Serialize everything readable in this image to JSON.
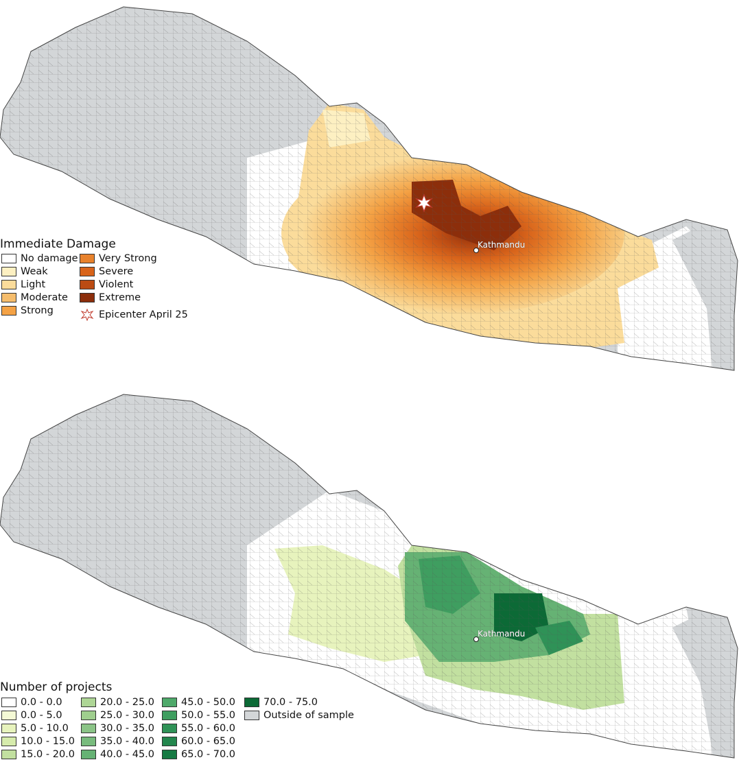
{
  "colors": {
    "outside": "#d3d6d8",
    "boundary": "#444444",
    "damage": {
      "no_damage": "#ffffff",
      "weak": "#fdf0c2",
      "light": "#fbdc9b",
      "moderate": "#f6bd6c",
      "strong": "#f4a245",
      "very_strong": "#e8822c",
      "severe": "#d8641b",
      "violent": "#bb4b13",
      "extreme": "#8c2e0b"
    },
    "projects": [
      "#ffffff",
      "#f4f9d5",
      "#e7f3bd",
      "#d6ebac",
      "#c2e0a0",
      "#aed696",
      "#9fce8e",
      "#8bc487",
      "#78bb7d",
      "#66b274",
      "#4ea96a",
      "#3f9e60",
      "#2f9257",
      "#23864d",
      "#167a43",
      "#0c6a36"
    ]
  },
  "map1": {
    "city": "Kathmandu",
    "legend": {
      "title": "Immediate Damage",
      "items": [
        {
          "label": "No damage",
          "color_key": "no_damage"
        },
        {
          "label": "Weak",
          "color_key": "weak"
        },
        {
          "label": "Light",
          "color_key": "light"
        },
        {
          "label": "Moderate",
          "color_key": "moderate"
        },
        {
          "label": "Strong",
          "color_key": "strong"
        },
        {
          "label": "Very Strong",
          "color_key": "very_strong"
        },
        {
          "label": "Severe",
          "color_key": "severe"
        },
        {
          "label": "Violent",
          "color_key": "violent"
        },
        {
          "label": "Extreme",
          "color_key": "extreme"
        }
      ],
      "epicenter_label": "Epicenter April 25",
      "epicenter_icon": "starburst-icon"
    }
  },
  "map2": {
    "city": "Kathmandu",
    "legend": {
      "title": "Number of projects",
      "items": [
        "0.0 - 0.0",
        "0.0 - 5.0",
        "5.0 - 10.0",
        "10.0 - 15.0",
        "15.0 - 20.0",
        "20.0 - 25.0",
        "25.0 - 30.0",
        "30.0 - 35.0",
        "35.0 - 40.0",
        "40.0 - 45.0",
        "45.0 - 50.0",
        "50.0 - 55.0",
        "55.0 - 60.0",
        "60.0 - 65.0",
        "65.0 - 70.0",
        "70.0 - 75.0"
      ],
      "outside_label": "Outside of sample"
    }
  }
}
